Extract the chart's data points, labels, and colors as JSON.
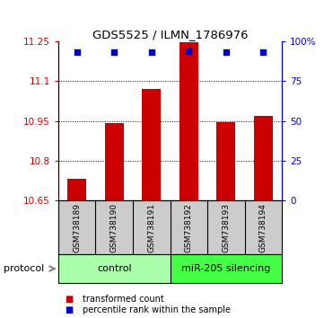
{
  "title": "GDS5525 / ILMN_1786976",
  "samples": [
    "GSM738189",
    "GSM738190",
    "GSM738191",
    "GSM738192",
    "GSM738193",
    "GSM738194"
  ],
  "bar_values": [
    10.73,
    10.94,
    11.07,
    11.245,
    10.945,
    10.97
  ],
  "percentile_values": [
    93,
    93,
    93,
    94,
    93,
    93
  ],
  "ylim_left": [
    10.65,
    11.25
  ],
  "ylim_right": [
    0,
    100
  ],
  "yticks_left": [
    10.65,
    10.8,
    10.95,
    11.1,
    11.25
  ],
  "ytick_labels_left": [
    "10.65",
    "10.8",
    "10.95",
    "11.1",
    "11.25"
  ],
  "yticks_right": [
    0,
    25,
    50,
    75,
    100
  ],
  "ytick_labels_right": [
    "0",
    "25",
    "50",
    "75",
    "100%"
  ],
  "bar_color": "#cc0000",
  "dot_color": "#0000cc",
  "control_label": "control",
  "treatment_label": "miR-205 silencing",
  "control_color": "#aaffaa",
  "treatment_color": "#44ff44",
  "xlabel_bar_color": "#cccccc",
  "protocol_label": "protocol",
  "legend1": "transformed count",
  "legend2": "percentile rank within the sample",
  "grid_ticks": [
    10.8,
    10.95,
    11.1
  ]
}
